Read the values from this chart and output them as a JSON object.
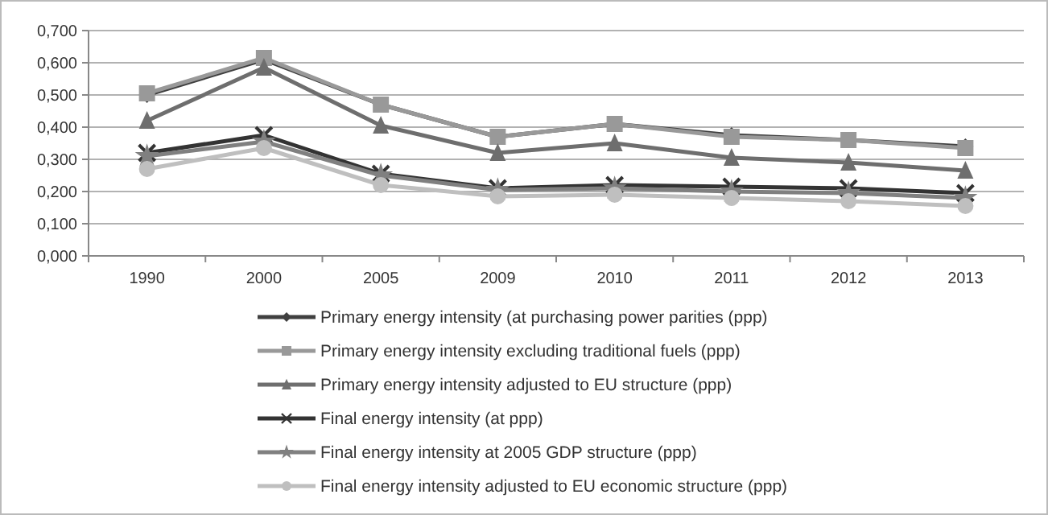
{
  "chart_data": {
    "type": "line",
    "categories": [
      "1990",
      "2000",
      "2005",
      "2009",
      "2010",
      "2011",
      "2012",
      "2013"
    ],
    "ylim": [
      0,
      0.7
    ],
    "yticks": [
      {
        "value": 0,
        "label": "0,000"
      },
      {
        "value": 0.1,
        "label": "0,100"
      },
      {
        "value": 0.2,
        "label": "0,200"
      },
      {
        "value": 0.3,
        "label": "0,300"
      },
      {
        "value": 0.4,
        "label": "0,400"
      },
      {
        "value": 0.5,
        "label": "0,500"
      },
      {
        "value": 0.6,
        "label": "0,600"
      },
      {
        "value": 0.7,
        "label": "0,700"
      }
    ],
    "grid": "y",
    "legend": "bottom",
    "series": [
      {
        "name": "Primary energy intensity (at purchasing power parities (ppp)",
        "color": "#404040",
        "marker": "diamond",
        "values": [
          0.5,
          0.61,
          0.47,
          0.37,
          0.41,
          0.375,
          0.36,
          0.34
        ]
      },
      {
        "name": "Primary energy intensity excluding traditional fuels (ppp)",
        "color": "#999999",
        "marker": "square",
        "values": [
          0.505,
          0.615,
          0.47,
          0.37,
          0.41,
          0.37,
          0.36,
          0.335
        ]
      },
      {
        "name": "Primary energy intensity adjusted to EU structure (ppp)",
        "color": "#6e6e6e",
        "marker": "triangle",
        "values": [
          0.42,
          0.585,
          0.405,
          0.32,
          0.35,
          0.305,
          0.29,
          0.265
        ]
      },
      {
        "name": "Final energy intensity (at ppp)",
        "color": "#333333",
        "marker": "cross",
        "values": [
          0.32,
          0.375,
          0.255,
          0.21,
          0.22,
          0.215,
          0.21,
          0.195
        ]
      },
      {
        "name": "Final energy intensity at 2005 GDP structure (ppp)",
        "color": "#808080",
        "marker": "star",
        "values": [
          0.31,
          0.355,
          0.25,
          0.205,
          0.21,
          0.2,
          0.195,
          0.18
        ]
      },
      {
        "name": "Final energy intensity adjusted to EU economic structure (ppp)",
        "color": "#bfbfbf",
        "marker": "circle",
        "values": [
          0.27,
          0.335,
          0.22,
          0.185,
          0.19,
          0.18,
          0.17,
          0.155
        ]
      }
    ]
  }
}
